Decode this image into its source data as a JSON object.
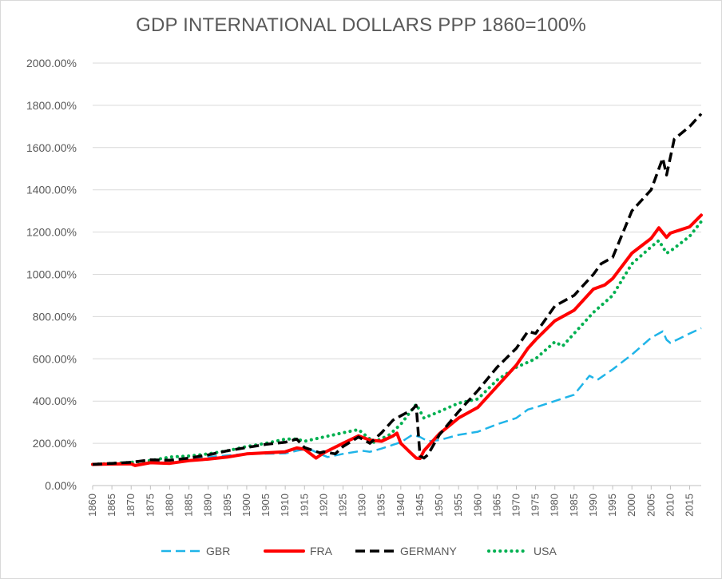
{
  "chart_data": {
    "type": "line",
    "title": "GDP INTERNATIONAL DOLLARS PPP 1860=100%",
    "xlabel": "",
    "ylabel": "",
    "ylim": [
      0,
      2000
    ],
    "ytick_values": [
      0,
      200,
      400,
      600,
      800,
      1000,
      1200,
      1400,
      1600,
      1800,
      2000
    ],
    "ytick_labels": [
      "0.00%",
      "200.00%",
      "400.00%",
      "600.00%",
      "800.00%",
      "1000.00%",
      "1200.00%",
      "1400.00%",
      "1600.00%",
      "1800.00%",
      "2000.00%"
    ],
    "xlim": [
      1860,
      2018
    ],
    "xtick_labels": [
      "1860",
      "1865",
      "1870",
      "1875",
      "1880",
      "1885",
      "1890",
      "1895",
      "1900",
      "1905",
      "1910",
      "1915",
      "1920",
      "1925",
      "1930",
      "1935",
      "1940",
      "1945",
      "1950",
      "1955",
      "1960",
      "1965",
      "1970",
      "1975",
      "1980",
      "1985",
      "1990",
      "1995",
      "2000",
      "2005",
      "2010",
      "2015"
    ],
    "legend_position": "bottom",
    "grid": true,
    "series": [
      {
        "name": "GBR",
        "color": "#1fb4e8",
        "style": "dashed",
        "points": [
          [
            1860,
            100
          ],
          [
            1870,
            112
          ],
          [
            1880,
            120
          ],
          [
            1890,
            135
          ],
          [
            1900,
            150
          ],
          [
            1910,
            152
          ],
          [
            1913,
            165
          ],
          [
            1916,
            175
          ],
          [
            1919,
            150
          ],
          [
            1921,
            135
          ],
          [
            1925,
            150
          ],
          [
            1930,
            165
          ],
          [
            1932,
            160
          ],
          [
            1935,
            175
          ],
          [
            1940,
            205
          ],
          [
            1943,
            240
          ],
          [
            1945,
            230
          ],
          [
            1947,
            210
          ],
          [
            1950,
            215
          ],
          [
            1955,
            240
          ],
          [
            1960,
            255
          ],
          [
            1965,
            290
          ],
          [
            1970,
            320
          ],
          [
            1973,
            360
          ],
          [
            1975,
            370
          ],
          [
            1980,
            400
          ],
          [
            1985,
            430
          ],
          [
            1989,
            520
          ],
          [
            1991,
            500
          ],
          [
            1995,
            550
          ],
          [
            2000,
            620
          ],
          [
            2005,
            700
          ],
          [
            2008,
            730
          ],
          [
            2009,
            690
          ],
          [
            2010,
            675
          ],
          [
            2015,
            720
          ],
          [
            2018,
            745
          ]
        ]
      },
      {
        "name": "FRA",
        "color": "#ff0000",
        "style": "solid",
        "points": [
          [
            1860,
            100
          ],
          [
            1865,
            102
          ],
          [
            1870,
            103
          ],
          [
            1871,
            95
          ],
          [
            1875,
            108
          ],
          [
            1880,
            105
          ],
          [
            1885,
            118
          ],
          [
            1890,
            125
          ],
          [
            1895,
            135
          ],
          [
            1900,
            150
          ],
          [
            1905,
            155
          ],
          [
            1910,
            160
          ],
          [
            1913,
            178
          ],
          [
            1915,
            172
          ],
          [
            1918,
            130
          ],
          [
            1920,
            155
          ],
          [
            1925,
            200
          ],
          [
            1929,
            235
          ],
          [
            1932,
            215
          ],
          [
            1935,
            210
          ],
          [
            1938,
            235
          ],
          [
            1939,
            248
          ],
          [
            1940,
            200
          ],
          [
            1942,
            165
          ],
          [
            1944,
            130
          ],
          [
            1945,
            128
          ],
          [
            1946,
            165
          ],
          [
            1950,
            245
          ],
          [
            1955,
            320
          ],
          [
            1960,
            370
          ],
          [
            1965,
            470
          ],
          [
            1970,
            570
          ],
          [
            1973,
            650
          ],
          [
            1975,
            690
          ],
          [
            1980,
            780
          ],
          [
            1985,
            830
          ],
          [
            1990,
            930
          ],
          [
            1993,
            950
          ],
          [
            1995,
            980
          ],
          [
            2000,
            1100
          ],
          [
            2005,
            1170
          ],
          [
            2007,
            1220
          ],
          [
            2009,
            1175
          ],
          [
            2010,
            1195
          ],
          [
            2015,
            1225
          ],
          [
            2018,
            1280
          ]
        ]
      },
      {
        "name": "GERMANY",
        "color": "#000000",
        "style": "dashed",
        "points": [
          [
            1860,
            100
          ],
          [
            1865,
            105
          ],
          [
            1870,
            110
          ],
          [
            1875,
            122
          ],
          [
            1880,
            120
          ],
          [
            1885,
            130
          ],
          [
            1890,
            145
          ],
          [
            1895,
            165
          ],
          [
            1900,
            180
          ],
          [
            1905,
            195
          ],
          [
            1910,
            205
          ],
          [
            1913,
            220
          ],
          [
            1915,
            180
          ],
          [
            1919,
            155
          ],
          [
            1920,
            160
          ],
          [
            1923,
            150
          ],
          [
            1925,
            185
          ],
          [
            1929,
            230
          ],
          [
            1932,
            200
          ],
          [
            1935,
            250
          ],
          [
            1938,
            310
          ],
          [
            1940,
            330
          ],
          [
            1943,
            360
          ],
          [
            1944,
            380
          ],
          [
            1945,
            140
          ],
          [
            1946,
            130
          ],
          [
            1947,
            145
          ],
          [
            1950,
            240
          ],
          [
            1955,
            350
          ],
          [
            1960,
            450
          ],
          [
            1965,
            560
          ],
          [
            1970,
            650
          ],
          [
            1973,
            730
          ],
          [
            1975,
            720
          ],
          [
            1980,
            850
          ],
          [
            1985,
            900
          ],
          [
            1990,
            1000
          ],
          [
            1992,
            1050
          ],
          [
            1995,
            1080
          ],
          [
            2000,
            1300
          ],
          [
            2005,
            1400
          ],
          [
            2008,
            1550
          ],
          [
            2009,
            1470
          ],
          [
            2011,
            1640
          ],
          [
            2015,
            1700
          ],
          [
            2018,
            1760
          ]
        ]
      },
      {
        "name": "USA",
        "color": "#00b050",
        "style": "dotted",
        "points": [
          [
            1860,
            100
          ],
          [
            1865,
            105
          ],
          [
            1870,
            110
          ],
          [
            1875,
            118
          ],
          [
            1880,
            135
          ],
          [
            1885,
            140
          ],
          [
            1890,
            150
          ],
          [
            1895,
            165
          ],
          [
            1900,
            185
          ],
          [
            1905,
            200
          ],
          [
            1910,
            220
          ],
          [
            1913,
            220
          ],
          [
            1915,
            210
          ],
          [
            1920,
            230
          ],
          [
            1925,
            250
          ],
          [
            1929,
            265
          ],
          [
            1933,
            205
          ],
          [
            1937,
            240
          ],
          [
            1940,
            290
          ],
          [
            1944,
            385
          ],
          [
            1946,
            320
          ],
          [
            1950,
            350
          ],
          [
            1955,
            390
          ],
          [
            1960,
            410
          ],
          [
            1965,
            500
          ],
          [
            1970,
            560
          ],
          [
            1975,
            600
          ],
          [
            1980,
            680
          ],
          [
            1982,
            660
          ],
          [
            1985,
            720
          ],
          [
            1990,
            820
          ],
          [
            1995,
            900
          ],
          [
            2000,
            1050
          ],
          [
            2005,
            1130
          ],
          [
            2007,
            1160
          ],
          [
            2009,
            1100
          ],
          [
            2010,
            1110
          ],
          [
            2015,
            1180
          ],
          [
            2018,
            1250
          ]
        ]
      }
    ]
  }
}
